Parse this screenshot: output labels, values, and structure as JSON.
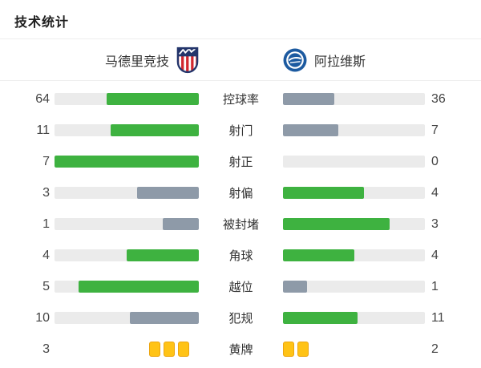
{
  "title": "技术统计",
  "header": {
    "home_team": {
      "name": "马德里竞技",
      "badge_icon": "atletico-madrid-crest"
    },
    "away_team": {
      "name": "阿拉维斯",
      "badge_icon": "alaves-crest"
    }
  },
  "colors": {
    "bar_green": "#3eb240",
    "bar_gray": "#8e9aa8",
    "bar_track": "#ebebeb",
    "card_fill": "#ffc316",
    "card_border": "#eca50f",
    "divider": "#ededed",
    "value_text": "#454545",
    "label_text": "#333333",
    "crest_navy": "#23356b",
    "crest_red": "#d2272e",
    "crest_blue": "#1c5aa0"
  },
  "rows": [
    {
      "label": "控球率",
      "home": 64,
      "away": 36,
      "home_color": "green",
      "away_color": "gray",
      "type": "bar"
    },
    {
      "label": "射门",
      "home": 11,
      "away": 7,
      "home_color": "green",
      "away_color": "gray",
      "type": "bar"
    },
    {
      "label": "射正",
      "home": 7,
      "away": 0,
      "home_color": "green",
      "away_color": "gray",
      "type": "bar"
    },
    {
      "label": "射偏",
      "home": 3,
      "away": 4,
      "home_color": "gray",
      "away_color": "green",
      "type": "bar"
    },
    {
      "label": "被封堵",
      "home": 1,
      "away": 3,
      "home_color": "gray",
      "away_color": "green",
      "type": "bar"
    },
    {
      "label": "角球",
      "home": 4,
      "away": 4,
      "home_color": "green",
      "away_color": "green",
      "type": "bar"
    },
    {
      "label": "越位",
      "home": 5,
      "away": 1,
      "home_color": "green",
      "away_color": "gray",
      "type": "bar"
    },
    {
      "label": "犯规",
      "home": 10,
      "away": 11,
      "home_color": "gray",
      "away_color": "green",
      "type": "bar"
    },
    {
      "label": "黄牌",
      "home": 3,
      "away": 2,
      "home_color": "green",
      "away_color": "gray",
      "type": "cards"
    }
  ],
  "chart_data": {
    "type": "bar",
    "title": "技术统计",
    "categories": [
      "控球率",
      "射门",
      "射正",
      "射偏",
      "被封堵",
      "角球",
      "越位",
      "犯规",
      "黄牌"
    ],
    "series": [
      {
        "name": "马德里竞技",
        "values": [
          64,
          11,
          7,
          3,
          1,
          4,
          5,
          10,
          3
        ]
      },
      {
        "name": "阿拉维斯",
        "values": [
          36,
          7,
          0,
          4,
          3,
          4,
          1,
          11,
          2
        ]
      }
    ],
    "layout": "mirrored horizontal bars, labels centered, fill fraction = value / (home+away), winner bar green, loser bar slate gray, ties both green, 黄牌 row rendered as yellow card icons",
    "legend_position": "top as team header with crests"
  }
}
